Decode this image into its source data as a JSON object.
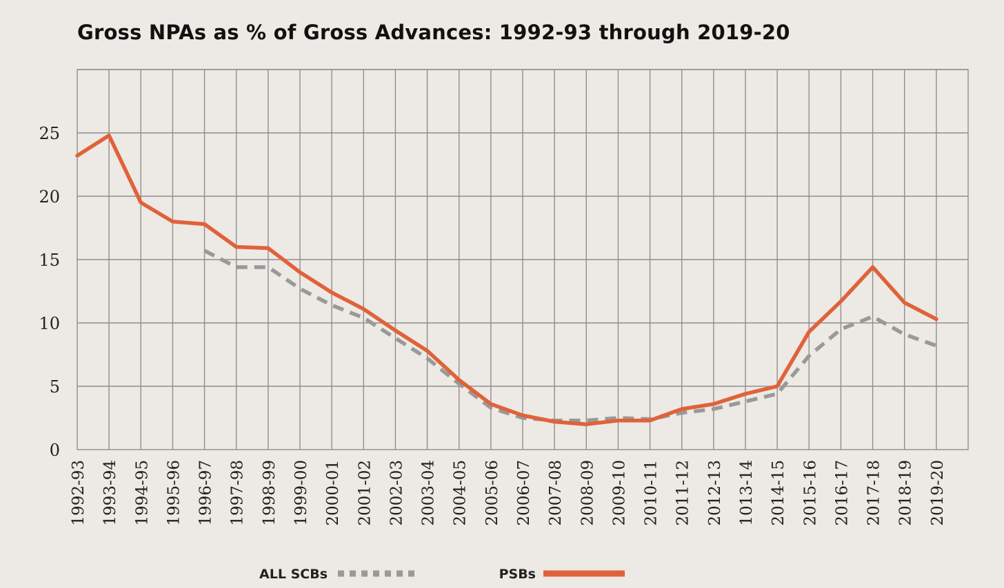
{
  "chart_data": {
    "type": "line",
    "title": "Gross NPAs as % of Gross Advances: 1992-93 through 2019-20",
    "xlabel": "",
    "ylabel": "",
    "ylim": [
      0,
      30
    ],
    "yticks": [
      0,
      5,
      10,
      15,
      20,
      25
    ],
    "grid": true,
    "legend_position": "bottom-center",
    "categories": [
      "1992-93",
      "1993-94",
      "1994-95",
      "1995-96",
      "1996-97",
      "1997-98",
      "1998-99",
      "1999-00",
      "2000-01",
      "2001-02",
      "2002-03",
      "2003-04",
      "2004-05",
      "2005-06",
      "2006-07",
      "2007-08",
      "2008-09",
      "2009-10",
      "2010-11",
      "2011-12",
      "2012-13",
      "1013-14",
      "2014-15",
      "2015-16",
      "2016-17",
      "2017-18",
      "2018-19",
      "2019-20"
    ],
    "series": [
      {
        "name": "ALL SCBs",
        "style": "dashed",
        "color": "#999999",
        "values": [
          null,
          null,
          null,
          null,
          15.7,
          14.4,
          14.4,
          12.7,
          11.4,
          10.4,
          8.8,
          7.2,
          5.2,
          3.3,
          2.5,
          2.3,
          2.3,
          2.5,
          2.4,
          2.9,
          3.2,
          3.8,
          4.4,
          7.4,
          9.5,
          10.5,
          9.1,
          8.2
        ]
      },
      {
        "name": "PSBs",
        "style": "solid",
        "color": "#e0623a",
        "values": [
          23.2,
          24.8,
          19.5,
          18.0,
          17.8,
          16.0,
          15.9,
          14.0,
          12.4,
          11.1,
          9.4,
          7.8,
          5.5,
          3.6,
          2.7,
          2.2,
          2.0,
          2.3,
          2.3,
          3.2,
          3.6,
          4.4,
          5.0,
          9.3,
          11.7,
          14.4,
          11.6,
          10.3
        ]
      }
    ]
  }
}
